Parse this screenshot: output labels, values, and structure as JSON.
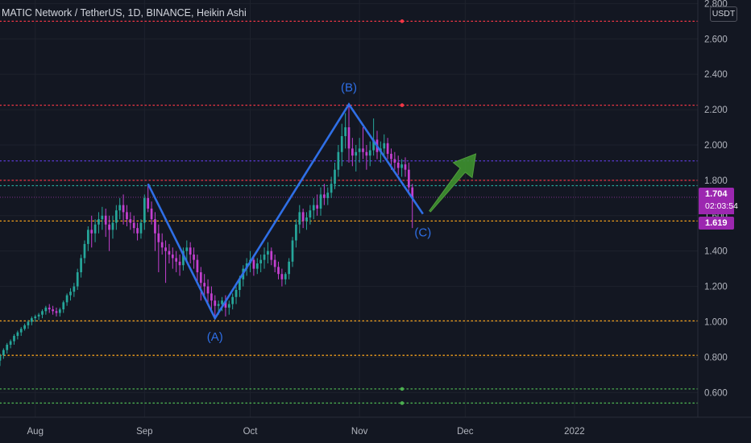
{
  "header": {
    "title": "MATIC Network / TetherUS, 1D, BINANCE, Heikin Ashi",
    "currency": "USDT"
  },
  "price_tags": {
    "last_price": "1.704",
    "countdown": "02:03:54",
    "second_price": "1.619"
  },
  "colors": {
    "background": "#131722",
    "bull": "#26a69a",
    "bear": "#c43fd0",
    "wave": "#2f6fe6",
    "arrow": "#3d8f2f",
    "red_level": "#f23645",
    "orange_level": "#f7a21b",
    "green_level": "#4caf50",
    "purple_level": "#5c3bd6",
    "teal_level": "#26a69a"
  },
  "chart_data": {
    "type": "candlestick",
    "style": "Heikin Ashi",
    "symbol": "MATIC Network / TetherUS",
    "interval": "1D",
    "exchange": "BINANCE",
    "y_axis": {
      "position": "right",
      "ticks": [
        "2.800",
        "2.600",
        "2.400",
        "2.200",
        "2.000",
        "1.800",
        "1.600",
        "1.400",
        "1.200",
        "1.000",
        "0.800",
        "0.600"
      ],
      "ylim": [
        0.46,
        2.82
      ]
    },
    "x_axis": {
      "ticks": [
        {
          "label": "Aug",
          "date": "2021-08-01"
        },
        {
          "label": "Sep",
          "date": "2021-09-01"
        },
        {
          "label": "Oct",
          "date": "2021-10-01"
        },
        {
          "label": "Nov",
          "date": "2021-11-01"
        },
        {
          "label": "Dec",
          "date": "2021-12-01"
        },
        {
          "label": "2022",
          "date": "2022-01-01"
        }
      ],
      "xlim": [
        "2021-07-22",
        "2022-02-05"
      ]
    },
    "horizontal_levels": [
      {
        "price": 2.7,
        "color": "red",
        "style": "dotted",
        "marker": true
      },
      {
        "price": 2.225,
        "color": "red",
        "style": "dotted",
        "marker": true
      },
      {
        "price": 1.91,
        "color": "purple",
        "style": "dotted"
      },
      {
        "price": 1.8,
        "color": "red",
        "style": "dotted"
      },
      {
        "price": 1.77,
        "color": "teal",
        "style": "dotted"
      },
      {
        "price": 1.57,
        "color": "orange",
        "style": "dotted"
      },
      {
        "price": 1.005,
        "color": "orange",
        "style": "dotted"
      },
      {
        "price": 0.81,
        "color": "orange",
        "style": "dotted"
      },
      {
        "price": 0.62,
        "color": "green",
        "style": "dotted",
        "marker": true
      },
      {
        "price": 0.54,
        "color": "green",
        "style": "dotted",
        "marker": true
      }
    ],
    "current_price_line": 1.704,
    "wave_points": [
      {
        "date": "2021-09-02",
        "price": 1.78
      },
      {
        "date": "2021-09-21",
        "price": 1.02,
        "label": "(A)"
      },
      {
        "date": "2021-10-29",
        "price": 2.23,
        "label": "(B)"
      },
      {
        "date": "2021-11-19",
        "price": 1.61,
        "label": "(C)"
      }
    ],
    "arrow": {
      "from": {
        "date": "2021-11-21",
        "price": 1.625
      },
      "to": {
        "date": "2021-12-04",
        "price": 1.95
      }
    },
    "candles": [
      [
        "2021-07-22",
        0.78,
        0.82,
        0.75,
        0.81
      ],
      [
        "2021-07-23",
        0.81,
        0.85,
        0.79,
        0.84
      ],
      [
        "2021-07-24",
        0.84,
        0.88,
        0.82,
        0.87
      ],
      [
        "2021-07-25",
        0.87,
        0.9,
        0.85,
        0.89
      ],
      [
        "2021-07-26",
        0.89,
        0.93,
        0.87,
        0.92
      ],
      [
        "2021-07-27",
        0.92,
        0.95,
        0.9,
        0.94
      ],
      [
        "2021-07-28",
        0.94,
        0.97,
        0.92,
        0.96
      ],
      [
        "2021-07-29",
        0.96,
        0.99,
        0.95,
        0.98
      ],
      [
        "2021-07-30",
        0.98,
        1.01,
        0.96,
        1.0
      ],
      [
        "2021-07-31",
        1.0,
        1.03,
        0.98,
        1.02
      ],
      [
        "2021-08-01",
        1.02,
        1.04,
        1.0,
        1.03
      ],
      [
        "2021-08-02",
        1.03,
        1.05,
        1.01,
        1.04
      ],
      [
        "2021-08-03",
        1.04,
        1.07,
        1.02,
        1.06
      ],
      [
        "2021-08-04",
        1.06,
        1.09,
        1.04,
        1.08
      ],
      [
        "2021-08-05",
        1.08,
        1.1,
        1.05,
        1.07
      ],
      [
        "2021-08-06",
        1.07,
        1.09,
        1.04,
        1.06
      ],
      [
        "2021-08-07",
        1.06,
        1.08,
        1.03,
        1.05
      ],
      [
        "2021-08-08",
        1.05,
        1.08,
        1.03,
        1.07
      ],
      [
        "2021-08-09",
        1.07,
        1.12,
        1.05,
        1.11
      ],
      [
        "2021-08-10",
        1.11,
        1.16,
        1.09,
        1.15
      ],
      [
        "2021-08-11",
        1.15,
        1.19,
        1.12,
        1.17
      ],
      [
        "2021-08-12",
        1.17,
        1.22,
        1.14,
        1.2
      ],
      [
        "2021-08-13",
        1.2,
        1.3,
        1.18,
        1.28
      ],
      [
        "2021-08-14",
        1.28,
        1.38,
        1.25,
        1.36
      ],
      [
        "2021-08-15",
        1.36,
        1.46,
        1.33,
        1.44
      ],
      [
        "2021-08-16",
        1.44,
        1.54,
        1.4,
        1.52
      ],
      [
        "2021-08-17",
        1.52,
        1.6,
        1.42,
        1.5
      ],
      [
        "2021-08-18",
        1.5,
        1.58,
        1.45,
        1.55
      ],
      [
        "2021-08-19",
        1.55,
        1.62,
        1.5,
        1.58
      ],
      [
        "2021-08-20",
        1.58,
        1.65,
        1.52,
        1.6
      ],
      [
        "2021-08-21",
        1.6,
        1.64,
        1.48,
        1.55
      ],
      [
        "2021-08-22",
        1.55,
        1.6,
        1.4,
        1.52
      ],
      [
        "2021-08-23",
        1.52,
        1.6,
        1.47,
        1.56
      ],
      [
        "2021-08-24",
        1.56,
        1.66,
        1.52,
        1.63
      ],
      [
        "2021-08-25",
        1.63,
        1.7,
        1.58,
        1.66
      ],
      [
        "2021-08-26",
        1.66,
        1.72,
        1.55,
        1.62
      ],
      [
        "2021-08-27",
        1.62,
        1.66,
        1.54,
        1.58
      ],
      [
        "2021-08-28",
        1.58,
        1.62,
        1.52,
        1.56
      ],
      [
        "2021-08-29",
        1.56,
        1.6,
        1.5,
        1.53
      ],
      [
        "2021-08-30",
        1.53,
        1.56,
        1.46,
        1.5
      ],
      [
        "2021-08-31",
        1.5,
        1.58,
        1.47,
        1.56
      ],
      [
        "2021-09-01",
        1.56,
        1.72,
        1.52,
        1.7
      ],
      [
        "2021-09-02",
        1.7,
        1.78,
        1.62,
        1.64
      ],
      [
        "2021-09-03",
        1.64,
        1.68,
        1.55,
        1.58
      ],
      [
        "2021-09-04",
        1.58,
        1.62,
        1.4,
        1.5
      ],
      [
        "2021-09-05",
        1.5,
        1.55,
        1.28,
        1.45
      ],
      [
        "2021-09-06",
        1.45,
        1.5,
        1.38,
        1.42
      ],
      [
        "2021-09-07",
        1.42,
        1.46,
        1.22,
        1.4
      ],
      [
        "2021-09-08",
        1.4,
        1.44,
        1.33,
        1.38
      ],
      [
        "2021-09-09",
        1.38,
        1.42,
        1.3,
        1.36
      ],
      [
        "2021-09-10",
        1.36,
        1.4,
        1.28,
        1.34
      ],
      [
        "2021-09-11",
        1.34,
        1.38,
        1.26,
        1.32
      ],
      [
        "2021-09-12",
        1.32,
        1.42,
        1.29,
        1.4
      ],
      [
        "2021-09-13",
        1.4,
        1.46,
        1.34,
        1.42
      ],
      [
        "2021-09-14",
        1.42,
        1.45,
        1.33,
        1.38
      ],
      [
        "2021-09-15",
        1.38,
        1.42,
        1.3,
        1.35
      ],
      [
        "2021-09-16",
        1.35,
        1.38,
        1.22,
        1.28
      ],
      [
        "2021-09-17",
        1.28,
        1.31,
        1.12,
        1.22
      ],
      [
        "2021-09-18",
        1.22,
        1.27,
        1.13,
        1.2
      ],
      [
        "2021-09-19",
        1.2,
        1.24,
        1.1,
        1.16
      ],
      [
        "2021-09-20",
        1.16,
        1.2,
        1.06,
        1.12
      ],
      [
        "2021-09-21",
        1.12,
        1.15,
        1.02,
        1.09
      ],
      [
        "2021-09-22",
        1.09,
        1.12,
        1.04,
        1.1
      ],
      [
        "2021-09-23",
        1.1,
        1.14,
        1.06,
        1.12
      ],
      [
        "2021-09-24",
        1.12,
        1.15,
        1.03,
        1.08
      ],
      [
        "2021-09-25",
        1.08,
        1.12,
        1.04,
        1.1
      ],
      [
        "2021-09-26",
        1.1,
        1.16,
        1.07,
        1.14
      ],
      [
        "2021-09-27",
        1.14,
        1.2,
        1.1,
        1.18
      ],
      [
        "2021-09-28",
        1.18,
        1.26,
        1.14,
        1.24
      ],
      [
        "2021-09-29",
        1.24,
        1.32,
        1.2,
        1.3
      ],
      [
        "2021-09-30",
        1.3,
        1.36,
        1.26,
        1.33
      ],
      [
        "2021-10-01",
        1.33,
        1.4,
        1.28,
        1.35
      ],
      [
        "2021-10-02",
        1.35,
        1.38,
        1.26,
        1.3
      ],
      [
        "2021-10-03",
        1.3,
        1.36,
        1.27,
        1.33
      ],
      [
        "2021-10-04",
        1.33,
        1.38,
        1.28,
        1.35
      ],
      [
        "2021-10-05",
        1.35,
        1.42,
        1.3,
        1.38
      ],
      [
        "2021-10-06",
        1.38,
        1.45,
        1.33,
        1.4
      ],
      [
        "2021-10-07",
        1.4,
        1.42,
        1.32,
        1.35
      ],
      [
        "2021-10-08",
        1.35,
        1.38,
        1.28,
        1.31
      ],
      [
        "2021-10-09",
        1.31,
        1.34,
        1.24,
        1.27
      ],
      [
        "2021-10-10",
        1.27,
        1.3,
        1.2,
        1.24
      ],
      [
        "2021-10-11",
        1.24,
        1.28,
        1.21,
        1.27
      ],
      [
        "2021-10-12",
        1.27,
        1.36,
        1.24,
        1.34
      ],
      [
        "2021-10-13",
        1.34,
        1.48,
        1.31,
        1.46
      ],
      [
        "2021-10-14",
        1.46,
        1.58,
        1.42,
        1.55
      ],
      [
        "2021-10-15",
        1.55,
        1.66,
        1.5,
        1.62
      ],
      [
        "2021-10-16",
        1.62,
        1.64,
        1.53,
        1.57
      ],
      [
        "2021-10-17",
        1.57,
        1.62,
        1.52,
        1.59
      ],
      [
        "2021-10-18",
        1.59,
        1.66,
        1.55,
        1.63
      ],
      [
        "2021-10-19",
        1.63,
        1.7,
        1.58,
        1.66
      ],
      [
        "2021-10-20",
        1.66,
        1.72,
        1.6,
        1.64
      ],
      [
        "2021-10-21",
        1.64,
        1.76,
        1.6,
        1.72
      ],
      [
        "2021-10-22",
        1.72,
        1.78,
        1.66,
        1.7
      ],
      [
        "2021-10-23",
        1.7,
        1.76,
        1.66,
        1.73
      ],
      [
        "2021-10-24",
        1.73,
        1.82,
        1.7,
        1.78
      ],
      [
        "2021-10-25",
        1.78,
        1.9,
        1.75,
        1.86
      ],
      [
        "2021-10-26",
        1.86,
        2.0,
        1.82,
        1.96
      ],
      [
        "2021-10-27",
        1.96,
        2.12,
        1.88,
        2.05
      ],
      [
        "2021-10-28",
        2.05,
        2.18,
        1.98,
        2.1
      ],
      [
        "2021-10-29",
        2.1,
        2.23,
        1.9,
        1.98
      ],
      [
        "2021-10-30",
        1.98,
        2.04,
        1.88,
        1.94
      ],
      [
        "2021-10-31",
        1.94,
        2.0,
        1.85,
        1.96
      ],
      [
        "2021-11-01",
        1.96,
        2.04,
        1.9,
        1.98
      ],
      [
        "2021-11-02",
        1.98,
        2.1,
        1.92,
        1.96
      ],
      [
        "2021-11-03",
        1.96,
        2.0,
        1.86,
        1.94
      ],
      [
        "2021-11-04",
        1.94,
        2.02,
        1.88,
        1.97
      ],
      [
        "2021-11-05",
        1.97,
        2.15,
        1.94,
        2.03
      ],
      [
        "2021-11-06",
        2.03,
        2.08,
        1.92,
        1.96
      ],
      [
        "2021-11-07",
        1.96,
        2.02,
        1.9,
        1.98
      ],
      [
        "2021-11-08",
        1.98,
        2.06,
        1.94,
        2.01
      ],
      [
        "2021-11-09",
        2.01,
        2.04,
        1.92,
        1.95
      ],
      [
        "2021-11-10",
        1.95,
        1.98,
        1.86,
        1.92
      ],
      [
        "2021-11-11",
        1.92,
        1.96,
        1.86,
        1.9
      ],
      [
        "2021-11-12",
        1.9,
        1.94,
        1.83,
        1.87
      ],
      [
        "2021-11-13",
        1.87,
        1.92,
        1.82,
        1.89
      ],
      [
        "2021-11-14",
        1.89,
        1.93,
        1.82,
        1.86
      ],
      [
        "2021-11-15",
        1.86,
        1.9,
        1.72,
        1.76
      ],
      [
        "2021-11-16",
        1.76,
        1.78,
        1.53,
        1.7
      ]
    ]
  }
}
